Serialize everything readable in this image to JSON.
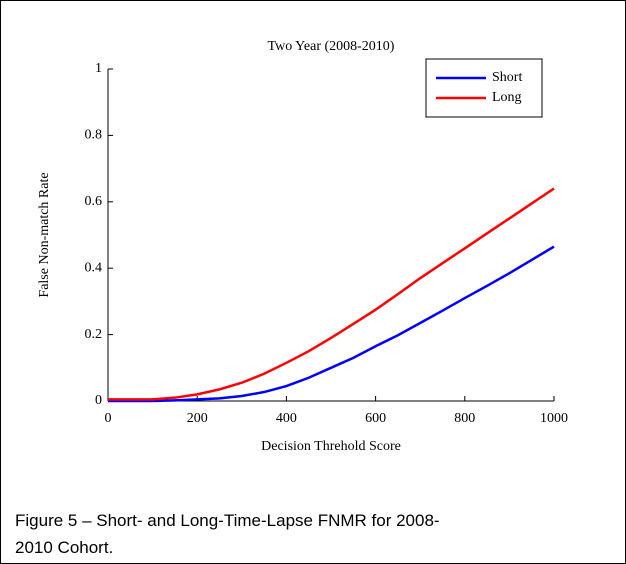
{
  "chart_data": {
    "type": "line",
    "title": "Two Year (2008-2010)",
    "xlabel": "Decision Threhold Score",
    "ylabel": "False Non-match Rate",
    "x": [
      0,
      50,
      100,
      150,
      200,
      250,
      300,
      350,
      400,
      450,
      500,
      550,
      600,
      650,
      700,
      750,
      800,
      850,
      900,
      950,
      1000
    ],
    "series": [
      {
        "name": "Short",
        "color": "#0000ff",
        "values": [
          0,
          0,
          0,
          0.002,
          0.005,
          0.008,
          0.015,
          0.027,
          0.045,
          0.07,
          0.1,
          0.13,
          0.165,
          0.198,
          0.235,
          0.272,
          0.31,
          0.347,
          0.385,
          0.425,
          0.465
        ]
      },
      {
        "name": "Long",
        "color": "#ff0000",
        "values": [
          0.005,
          0.005,
          0.005,
          0.01,
          0.02,
          0.035,
          0.055,
          0.082,
          0.115,
          0.15,
          0.19,
          0.232,
          0.275,
          0.322,
          0.37,
          0.415,
          0.46,
          0.505,
          0.55,
          0.595,
          0.64
        ]
      }
    ],
    "xlim": [
      0,
      1000
    ],
    "xticks": [
      0,
      200,
      400,
      600,
      800,
      1000
    ],
    "ylim": [
      0,
      1
    ],
    "yticks": [
      0,
      0.2,
      0.4,
      0.6,
      0.8,
      1
    ],
    "legend": "upper right"
  },
  "caption": "Figure 5 – Short- and Long-Time-Lapse FNMR for 2008-2010 Cohort."
}
